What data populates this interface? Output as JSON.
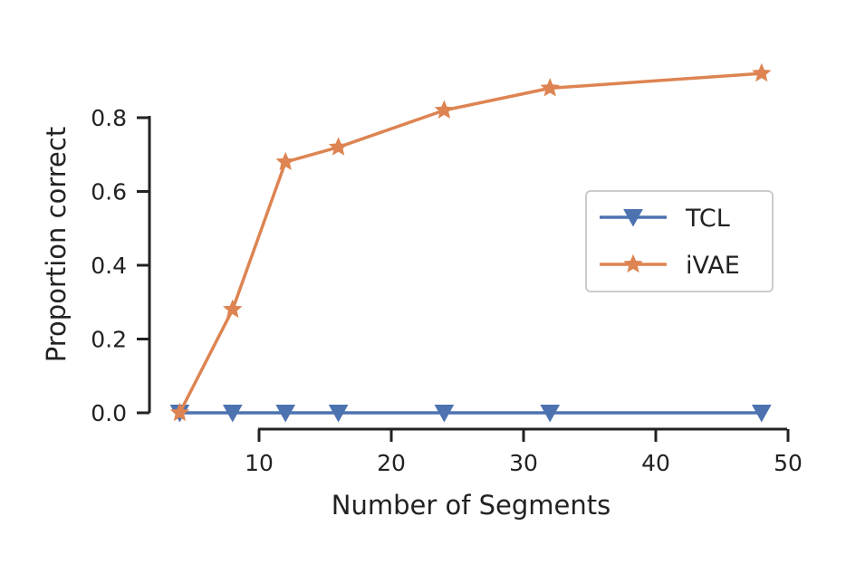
{
  "chart_data": {
    "type": "line",
    "xlabel": "Number of Segments",
    "ylabel": "Proportion correct",
    "xlim": [
      4,
      50
    ],
    "ylim": [
      0,
      0.8
    ],
    "x_ticks": [
      10,
      20,
      30,
      40,
      50
    ],
    "x_tick_labels": [
      "10",
      "20",
      "30",
      "40",
      "50"
    ],
    "y_ticks": [
      0.0,
      0.2,
      0.4,
      0.6,
      0.8
    ],
    "y_tick_labels": [
      "0.0",
      "0.2",
      "0.4",
      "0.6",
      "0.8"
    ],
    "grid": false,
    "legend_position": "center-right",
    "series": [
      {
        "name": "TCL",
        "color": "#4c72b0",
        "marker": "triangle-down",
        "x": [
          4,
          8,
          12,
          16,
          24,
          32,
          48
        ],
        "y": [
          0.0,
          0.0,
          0.0,
          0.0,
          0.0,
          0.0,
          0.0
        ]
      },
      {
        "name": "iVAE",
        "color": "#dd8452",
        "marker": "star",
        "x": [
          4,
          8,
          12,
          16,
          24,
          32,
          48
        ],
        "y": [
          0.0,
          0.28,
          0.68,
          0.72,
          0.82,
          0.88,
          0.92
        ]
      }
    ]
  }
}
